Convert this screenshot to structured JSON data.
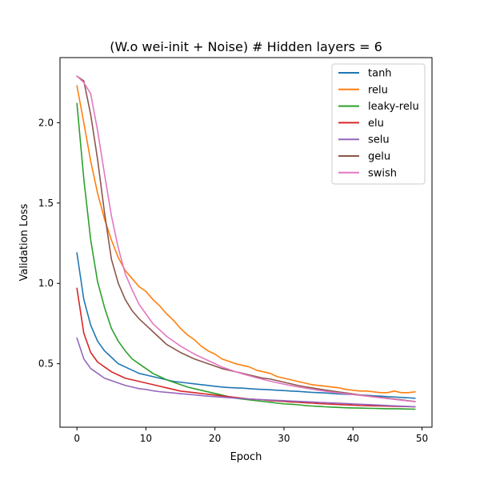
{
  "chart_data": {
    "type": "line",
    "title": "(W.o wei-init + Noise) # Hidden layers = 6",
    "xlabel": "Epoch",
    "ylabel": "Validation Loss",
    "xlim": [
      -2.45,
      51.45
    ],
    "ylim": [
      0.105,
      2.405
    ],
    "xticks": [
      0,
      10,
      20,
      30,
      40,
      50
    ],
    "yticks": [
      0.5,
      1.0,
      1.5,
      2.0
    ],
    "xtick_labels": [
      "0",
      "10",
      "20",
      "30",
      "40",
      "50"
    ],
    "ytick_labels": [
      "0.5",
      "1.0",
      "1.5",
      "2.0"
    ],
    "grid": false,
    "legend_position": "top-right",
    "x": [
      0,
      1,
      2,
      3,
      4,
      5,
      6,
      7,
      8,
      9,
      10,
      11,
      12,
      13,
      14,
      15,
      16,
      17,
      18,
      19,
      20,
      21,
      22,
      23,
      24,
      25,
      26,
      27,
      28,
      29,
      30,
      31,
      32,
      33,
      34,
      35,
      36,
      37,
      38,
      39,
      40,
      41,
      42,
      43,
      44,
      45,
      46,
      47,
      48,
      49
    ],
    "series": [
      {
        "name": "tanh",
        "color": "#1f77b4",
        "values": [
          1.19,
          0.9,
          0.74,
          0.64,
          0.58,
          0.54,
          0.5,
          0.48,
          0.46,
          0.44,
          0.43,
          0.42,
          0.41,
          0.4,
          0.39,
          0.385,
          0.38,
          0.375,
          0.37,
          0.365,
          0.36,
          0.355,
          0.352,
          0.35,
          0.348,
          0.345,
          0.342,
          0.34,
          0.338,
          0.335,
          0.333,
          0.33,
          0.328,
          0.325,
          0.322,
          0.32,
          0.318,
          0.315,
          0.312,
          0.31,
          0.308,
          0.305,
          0.303,
          0.3,
          0.298,
          0.295,
          0.293,
          0.29,
          0.288,
          0.285
        ]
      },
      {
        "name": "relu",
        "color": "#ff7f0e",
        "values": [
          2.23,
          2.0,
          1.76,
          1.56,
          1.4,
          1.27,
          1.16,
          1.08,
          1.03,
          0.98,
          0.95,
          0.9,
          0.86,
          0.81,
          0.77,
          0.72,
          0.68,
          0.65,
          0.61,
          0.58,
          0.56,
          0.53,
          0.515,
          0.5,
          0.49,
          0.48,
          0.46,
          0.45,
          0.44,
          0.42,
          0.41,
          0.4,
          0.39,
          0.38,
          0.37,
          0.365,
          0.36,
          0.355,
          0.35,
          0.34,
          0.335,
          0.33,
          0.33,
          0.325,
          0.32,
          0.32,
          0.33,
          0.32,
          0.32,
          0.325
        ]
      },
      {
        "name": "leaky-relu",
        "color": "#2ca02c",
        "values": [
          2.12,
          1.65,
          1.27,
          1.01,
          0.85,
          0.72,
          0.64,
          0.58,
          0.53,
          0.5,
          0.47,
          0.44,
          0.42,
          0.4,
          0.385,
          0.37,
          0.355,
          0.345,
          0.335,
          0.325,
          0.315,
          0.305,
          0.295,
          0.285,
          0.28,
          0.275,
          0.27,
          0.265,
          0.26,
          0.255,
          0.25,
          0.248,
          0.245,
          0.24,
          0.237,
          0.235,
          0.232,
          0.23,
          0.228,
          0.226,
          0.225,
          0.224,
          0.223,
          0.222,
          0.221,
          0.22,
          0.22,
          0.219,
          0.218,
          0.217
        ]
      },
      {
        "name": "elu",
        "color": "#d62728",
        "values": [
          0.97,
          0.69,
          0.57,
          0.51,
          0.48,
          0.45,
          0.43,
          0.41,
          0.4,
          0.39,
          0.38,
          0.37,
          0.36,
          0.35,
          0.34,
          0.33,
          0.325,
          0.32,
          0.315,
          0.31,
          0.305,
          0.3,
          0.295,
          0.29,
          0.285,
          0.28,
          0.278,
          0.275,
          0.27,
          0.268,
          0.265,
          0.262,
          0.26,
          0.257,
          0.255,
          0.252,
          0.25,
          0.248,
          0.246,
          0.244,
          0.242,
          0.24,
          0.239,
          0.238,
          0.237,
          0.236,
          0.235,
          0.234,
          0.233,
          0.232
        ]
      },
      {
        "name": "selu",
        "color": "#9467bd",
        "values": [
          0.66,
          0.53,
          0.47,
          0.44,
          0.41,
          0.395,
          0.38,
          0.365,
          0.355,
          0.345,
          0.34,
          0.332,
          0.326,
          0.322,
          0.318,
          0.314,
          0.31,
          0.306,
          0.302,
          0.298,
          0.295,
          0.292,
          0.289,
          0.286,
          0.283,
          0.28,
          0.278,
          0.276,
          0.274,
          0.272,
          0.27,
          0.268,
          0.266,
          0.264,
          0.262,
          0.26,
          0.258,
          0.256,
          0.254,
          0.252,
          0.25,
          0.248,
          0.246,
          0.244,
          0.242,
          0.24,
          0.238,
          0.236,
          0.234,
          0.232
        ]
      },
      {
        "name": "gelu",
        "color": "#8c564b",
        "values": [
          2.29,
          2.26,
          2.05,
          1.77,
          1.44,
          1.15,
          1.0,
          0.9,
          0.83,
          0.78,
          0.74,
          0.7,
          0.66,
          0.62,
          0.595,
          0.57,
          0.55,
          0.53,
          0.515,
          0.5,
          0.485,
          0.47,
          0.46,
          0.45,
          0.44,
          0.43,
          0.42,
          0.41,
          0.405,
          0.395,
          0.385,
          0.375,
          0.365,
          0.357,
          0.35,
          0.343,
          0.336,
          0.33,
          0.324,
          0.318,
          0.312,
          0.306,
          0.3,
          0.295,
          0.29,
          0.285,
          0.28,
          0.275,
          0.27,
          0.265
        ]
      },
      {
        "name": "swish",
        "color": "#e377c2",
        "values": [
          2.29,
          2.25,
          2.18,
          1.95,
          1.68,
          1.42,
          1.22,
          1.06,
          0.96,
          0.87,
          0.81,
          0.75,
          0.71,
          0.67,
          0.64,
          0.61,
          0.585,
          0.56,
          0.54,
          0.52,
          0.5,
          0.48,
          0.465,
          0.45,
          0.437,
          0.425,
          0.413,
          0.402,
          0.392,
          0.382,
          0.373,
          0.364,
          0.356,
          0.349,
          0.342,
          0.335,
          0.329,
          0.323,
          0.318,
          0.313,
          0.308,
          0.303,
          0.298,
          0.293,
          0.288,
          0.283,
          0.278,
          0.273,
          0.268,
          0.263
        ]
      }
    ]
  }
}
